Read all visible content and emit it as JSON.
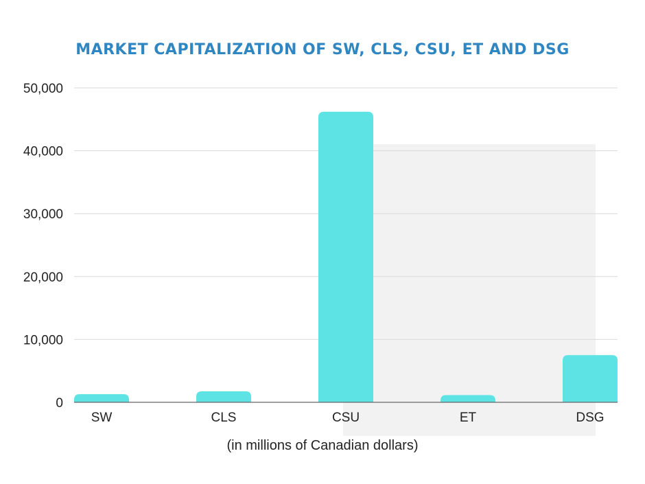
{
  "colors": {
    "title": "#2f86c1",
    "bar": "#5ee3e5",
    "grid": "#d9d9d9",
    "baseline": "#666666",
    "text": "#222222",
    "background_panel": "#f2f2f2"
  },
  "chart_data": {
    "type": "bar",
    "title": "MARKET CAPITALIZATION OF SW, CLS, CSU, ET AND DSG",
    "xlabel": "(in millions of Canadian dollars)",
    "ylabel": "",
    "categories": [
      "SW",
      "CLS",
      "CSU",
      "ET",
      "DSG"
    ],
    "values": [
      1300,
      1750,
      46200,
      1150,
      7500
    ],
    "ylim": [
      0,
      50000
    ],
    "yticks": [
      0,
      10000,
      20000,
      30000,
      40000,
      50000
    ],
    "ytick_labels": [
      "0",
      "10,000",
      "20,000",
      "30,000",
      "40,000",
      "50,000"
    ],
    "grid": true,
    "legend": "none"
  }
}
